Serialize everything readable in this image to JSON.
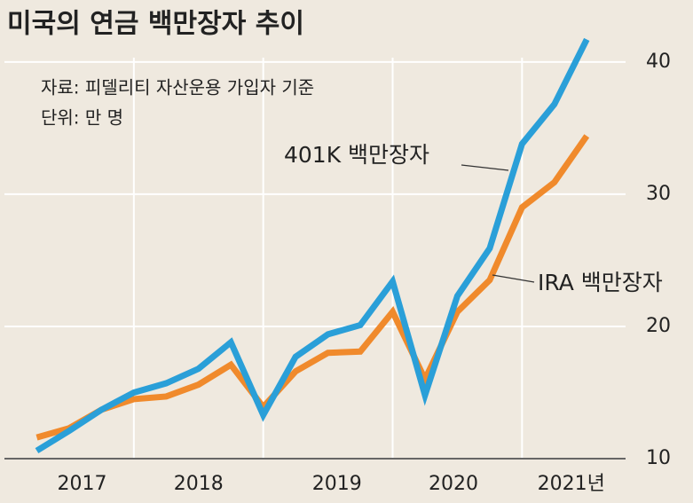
{
  "chart_data": {
    "type": "line",
    "title": "미국의 연금 백만장자 추이",
    "annotations": [
      "자료: 피델리티 자산운용 가입자 기준",
      "단위: 만 명"
    ],
    "x": [
      2017.25,
      2017.5,
      2017.75,
      2018,
      2018.25,
      2018.5,
      2018.75,
      2019,
      2019.25,
      2019.5,
      2019.75,
      2020,
      2020.25,
      2020.5,
      2020.75,
      2021,
      2021.25,
      2021.5
    ],
    "xlim": [
      2017,
      2021.8
    ],
    "xticks": [
      2018,
      2019,
      2020,
      2021
    ],
    "x_labels": [
      {
        "value": 2017.6,
        "label": "2017"
      },
      {
        "value": 2018.5,
        "label": "2018"
      },
      {
        "value": 2019.57,
        "label": "2019"
      },
      {
        "value": 2020.47,
        "label": "2020"
      },
      {
        "value": 2021.38,
        "label": "2021년"
      }
    ],
    "ylim": [
      10,
      42
    ],
    "yticks": [
      10,
      20,
      30,
      40
    ],
    "grid": true,
    "series": [
      {
        "name": "401K 백만장자",
        "color": "#2a9fd8",
        "values": [
          10.6,
          12.1,
          13.7,
          15.0,
          15.7,
          16.8,
          18.8,
          13.3,
          17.7,
          19.4,
          20.1,
          23.4,
          14.8,
          22.3,
          25.9,
          33.8,
          36.8,
          41.7
        ]
      },
      {
        "name": "IRA 백만장자",
        "color": "#f08a2c",
        "values": [
          11.6,
          12.3,
          13.7,
          14.5,
          14.7,
          15.6,
          17.1,
          13.9,
          16.6,
          18.0,
          18.1,
          21.1,
          16.0,
          21.1,
          23.5,
          29.0,
          30.9,
          34.4
        ]
      }
    ]
  }
}
